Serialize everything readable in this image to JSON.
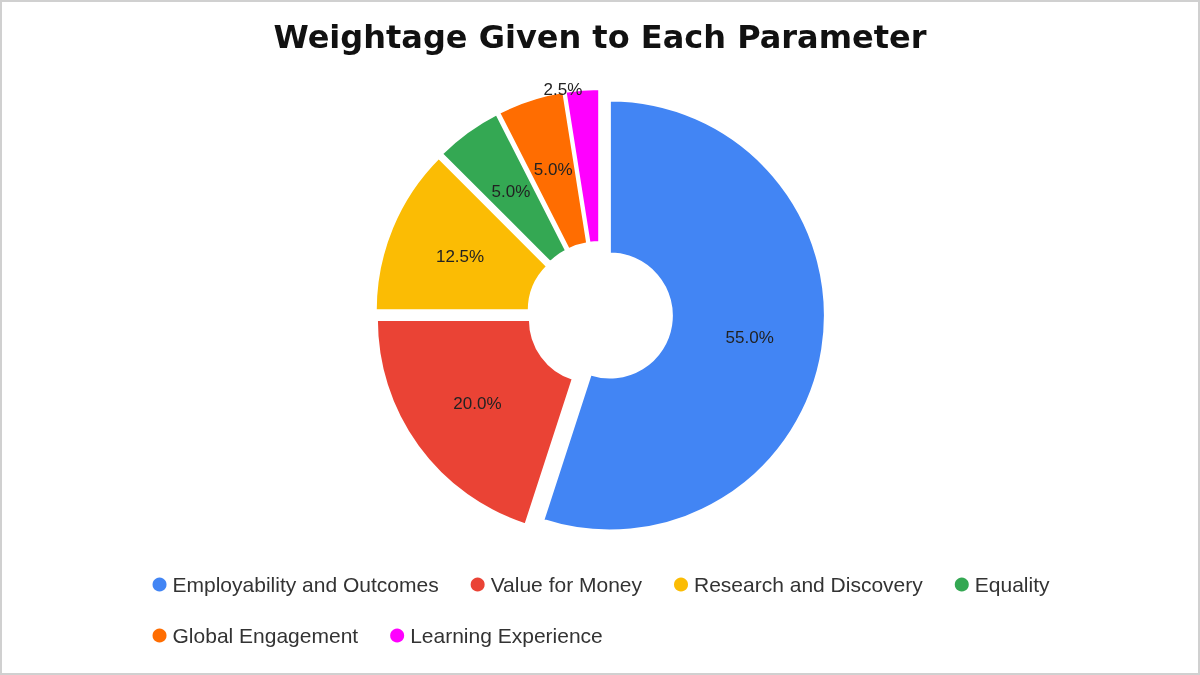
{
  "chart_data": {
    "type": "donut",
    "title": "Weightage Given to Each Parameter",
    "categories": [
      "Employability and Outcomes",
      "Value for Money",
      "Research and Discovery",
      "Equality",
      "Global Engagement",
      "Learning Experience"
    ],
    "values": [
      55,
      20,
      12.5,
      5,
      5,
      2.5
    ],
    "colors": [
      "#4285f4",
      "#ea4335",
      "#fbbc04",
      "#34a853",
      "#ff6d01",
      "#ff00ff"
    ],
    "value_labels": [
      "55.0%",
      "20.0%",
      "12.5%",
      "5.0%",
      "5.0%",
      "2.5%"
    ],
    "legend": "bottom"
  }
}
